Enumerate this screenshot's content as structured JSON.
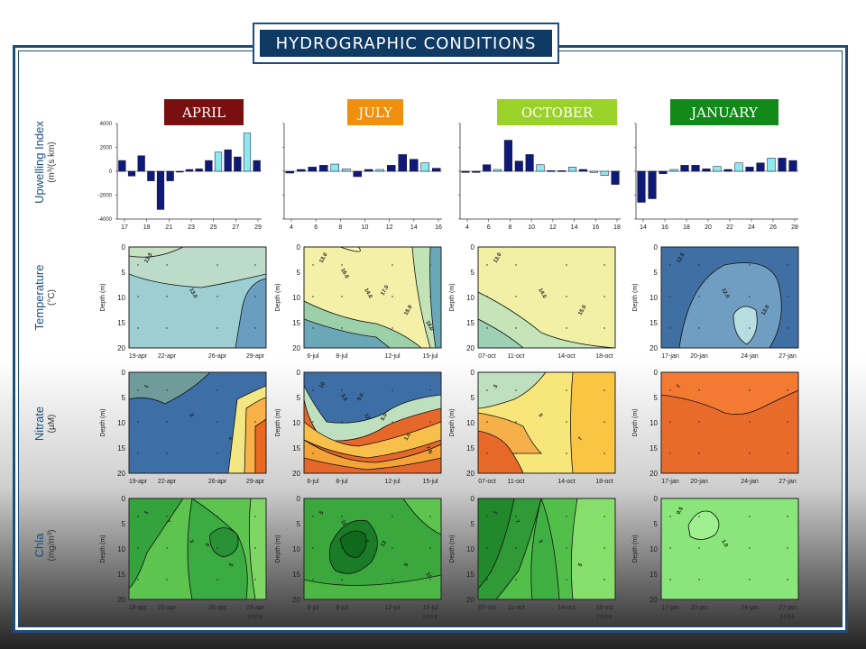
{
  "title": "HYDROGRAPHIC CONDITIONS",
  "seasons": [
    {
      "label": "APRIL",
      "color": "#7a0f10"
    },
    {
      "label": "JULY",
      "color": "#f0900e"
    },
    {
      "label": "OCTOBER",
      "color": "#9bd22a"
    },
    {
      "label": "JANUARY",
      "color": "#118a1a"
    }
  ],
  "row_labels": [
    {
      "name": "Upwelling Index",
      "unit": "(m³/(s km)"
    },
    {
      "name": "Temperature",
      "unit": "(°C)"
    },
    {
      "name": "Nitrate",
      "unit": "(µM)"
    },
    {
      "name": "Chla",
      "unit": "(mg/m³)"
    }
  ],
  "depth_label": "Depth (m)",
  "chart_data": {
    "upwelling": [
      {
        "type": "bar",
        "ylim": [
          -4000,
          4000
        ],
        "yticks": [
          "4000",
          "2000",
          "0",
          "-2000",
          "-4000"
        ],
        "xticks": [
          "17",
          "19",
          "21",
          "23",
          "25",
          "27",
          "29"
        ],
        "xticks_start": 17,
        "x_start": 16,
        "values": [
          900,
          -400,
          1300,
          -800,
          -3200,
          -800,
          0,
          150,
          200,
          900,
          1600,
          1800,
          1200,
          3200,
          900
        ],
        "highlight": [
          10,
          13
        ]
      },
      {
        "type": "bar",
        "ylim": [
          -4000,
          4000
        ],
        "xticks": [
          "4",
          "6",
          "8",
          "10",
          "12",
          "14",
          "16"
        ],
        "xticks_start": 4,
        "x_start": 3,
        "values": [
          -150,
          150,
          350,
          500,
          600,
          200,
          -450,
          150,
          150,
          500,
          1400,
          1000,
          700,
          250
        ],
        "highlight": [
          4,
          5,
          8,
          12
        ]
      },
      {
        "type": "bar",
        "ylim": [
          -4000,
          4000
        ],
        "xticks": [
          "4",
          "6",
          "8",
          "10",
          "12",
          "14",
          "16",
          "18"
        ],
        "xticks_start": 4,
        "x_start": 3,
        "values": [
          -100,
          -100,
          550,
          150,
          2600,
          850,
          1400,
          550,
          50,
          50,
          350,
          150,
          -100,
          -350,
          -1100
        ],
        "highlight": [
          3,
          7,
          10,
          12,
          13
        ]
      },
      {
        "type": "bar",
        "ylim": [
          -4000,
          4000
        ],
        "xticks": [
          "14",
          "16",
          "18",
          "20",
          "22",
          "24",
          "26",
          "28"
        ],
        "xticks_start": 14,
        "x_start": 13,
        "values": [
          -2600,
          -2300,
          -200,
          150,
          500,
          500,
          200,
          400,
          150,
          700,
          350,
          700,
          1100,
          1100,
          900
        ],
        "highlight": [
          3,
          7,
          9,
          12
        ]
      }
    ],
    "depth_axis": {
      "ticks": [
        "0",
        "5",
        "10",
        "15",
        "20"
      ]
    },
    "date_ticks": [
      [
        "19-apr",
        "22-apr",
        "26-apr",
        "29-apr"
      ],
      [
        "6-jul",
        "8-jul",
        "12-jul",
        "15-jul"
      ],
      [
        "07-oct",
        "11-oct",
        "14-oct",
        "18-oct"
      ],
      [
        "17-jan",
        "20-jan",
        "24-jan",
        "27-jan"
      ]
    ],
    "years": [
      "2004",
      "2004",
      "2004",
      "2005"
    ],
    "contour_labels": {
      "temperature": [
        [
          "13.5",
          "13.0"
        ],
        [
          "13.0",
          "14.0",
          "15.0",
          "16.0",
          "17.0",
          "18.0"
        ],
        [
          "13.0",
          "14.0",
          "15.0"
        ],
        [
          "12.5",
          "12.0",
          "13.0"
        ]
      ],
      "nitrate": [
        [
          "1",
          "3",
          "5"
        ],
        [
          "10",
          "12",
          "1.0",
          "3.0",
          "5.0",
          "7.0",
          "9.0"
        ],
        [
          "3",
          "5",
          "7"
        ],
        [
          "7"
        ]
      ],
      "chla": [
        [
          "1",
          "3",
          "5",
          "7",
          "9"
        ],
        [
          "5",
          "7",
          "9",
          "11",
          "13",
          "15"
        ],
        [
          "1",
          "3",
          "5",
          "7"
        ],
        [
          "0.5",
          "1.0"
        ]
      ]
    }
  }
}
